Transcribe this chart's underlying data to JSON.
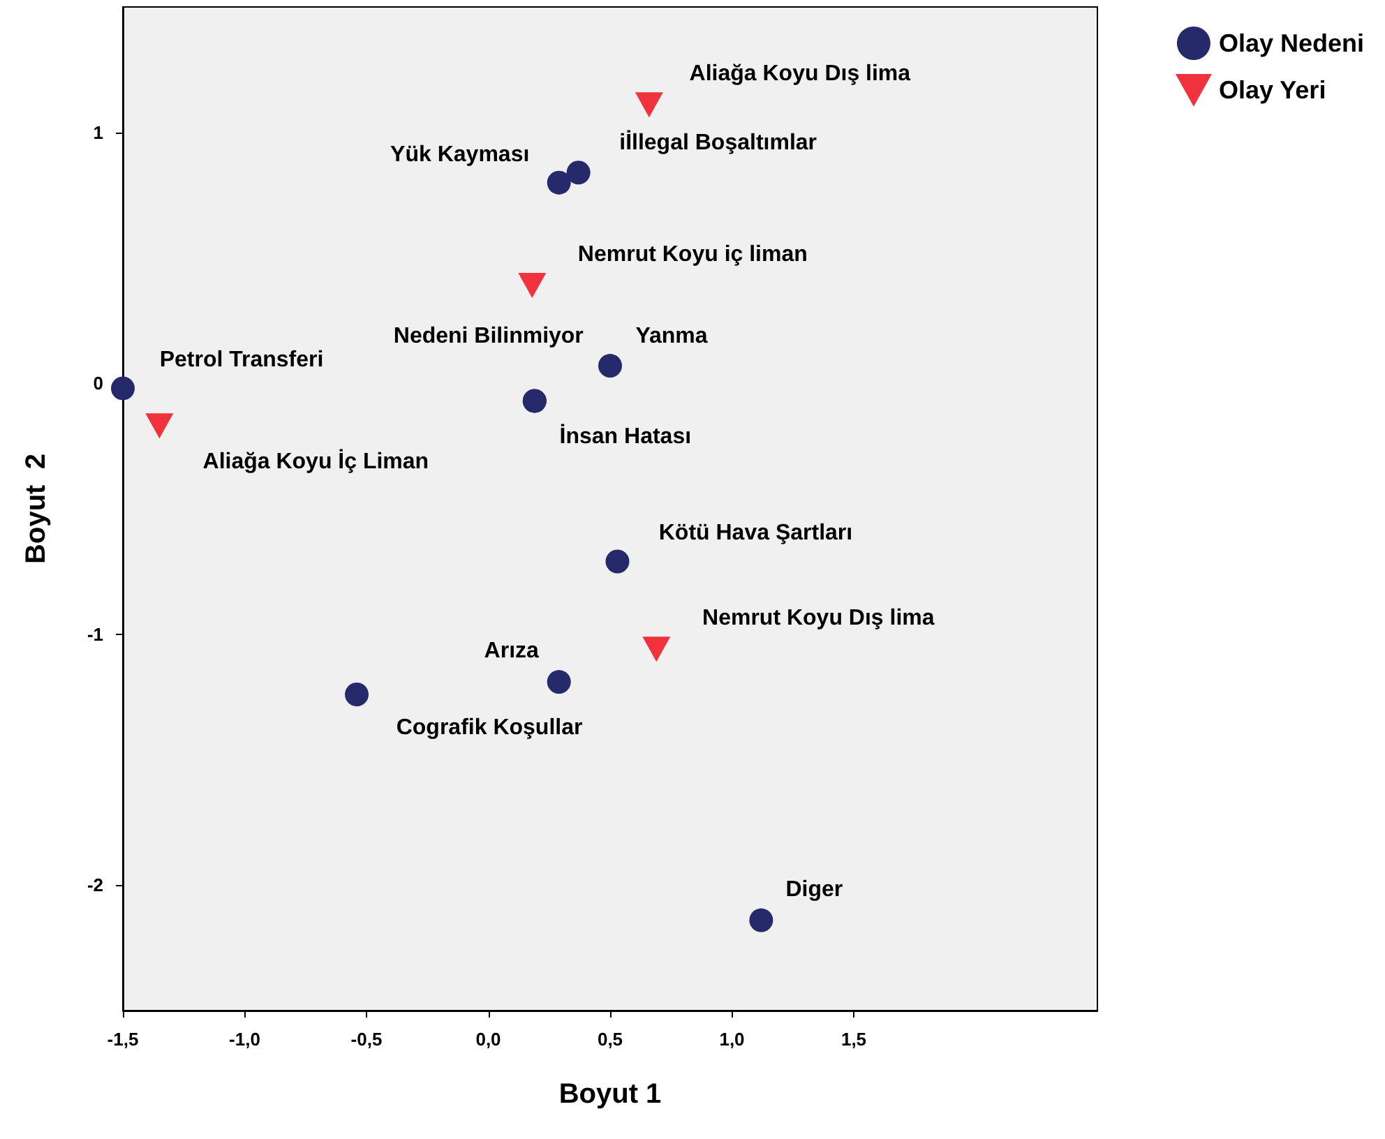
{
  "chart_data": {
    "type": "scatter",
    "xlabel": "Boyut 1",
    "ylabel": "Boyut  2",
    "xlim": [
      -1.5,
      2.5
    ],
    "ylim": [
      -2.5,
      1.5
    ],
    "xticks": [
      {
        "value": -1.5,
        "label": "-1,5"
      },
      {
        "value": -1,
        "label": "-1,0"
      },
      {
        "value": -0.5,
        "label": "-0,5"
      },
      {
        "value": 0,
        "label": "0,0"
      },
      {
        "value": 0.5,
        "label": "0,5"
      },
      {
        "value": 1,
        "label": "1,0"
      },
      {
        "value": 1.5,
        "label": "1,5"
      }
    ],
    "yticks": [
      -2,
      -1,
      0,
      1
    ],
    "grid": false,
    "legend": "top right",
    "series": [
      {
        "name": "Olay Nedeni",
        "color": "#262a6b",
        "marker": "circle",
        "x": [
          -1.5,
          0.29,
          0.37,
          0.19,
          0.5,
          0.19,
          0.53,
          0.29,
          -0.54,
          1.12
        ],
        "values": [
          -0.02,
          0.8,
          0.84,
          -0.07,
          0.07,
          -0.07,
          -0.71,
          -1.19,
          -1.24,
          -2.14
        ],
        "value_labels": [
          "Petrol Transferi",
          "Yük Kayması",
          "iİllegal Boşaltımlar",
          "Nedeni Bilinmiyor",
          "Yanma",
          "İnsan Hatası",
          "Kötü Hava Şartları",
          "Arıza",
          "Cografik Koşullar",
          "Diger"
        ]
      },
      {
        "name": "Olay Yeri",
        "color": "#f0323c",
        "marker": "triangle",
        "x": [
          0.66,
          0.18,
          -1.35,
          0.69
        ],
        "values": [
          1.11,
          0.39,
          -0.17,
          -1.06
        ],
        "value_labels": [
          "Aliağa Koyu Dış lima",
          "Nemrut Koyu iç liman",
          "Aliağa Koyu İç Liman",
          "Nemrut Koyu Dış lima"
        ]
      }
    ]
  }
}
